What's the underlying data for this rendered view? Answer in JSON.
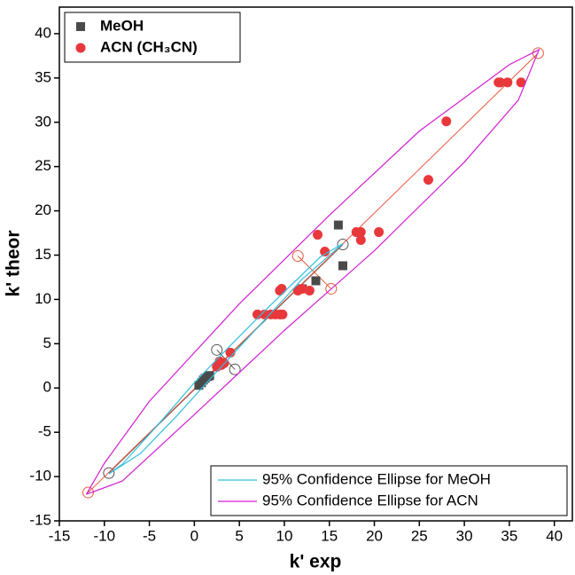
{
  "chart_data": {
    "type": "scatter",
    "x_label": "k' exp",
    "y_label": "k' theor",
    "xlim": [
      -15,
      42
    ],
    "ylim": [
      -15,
      43
    ],
    "xticks": [
      -15,
      -10,
      -5,
      0,
      5,
      10,
      15,
      20,
      25,
      30,
      35,
      40
    ],
    "yticks": [
      -15,
      -10,
      -5,
      0,
      5,
      10,
      15,
      20,
      25,
      30,
      35,
      40
    ],
    "series": [
      {
        "name": "MeOH",
        "kind": "scatter",
        "marker": "square",
        "color": "#4a4a4a",
        "legend": "upper left",
        "x": [
          0.5,
          0.8,
          1.0,
          1.2,
          1.5,
          1.7,
          12.0,
          13.5,
          16.0,
          16.5
        ],
        "y": [
          0.3,
          0.6,
          0.9,
          1.1,
          1.3,
          1.4,
          11.2,
          12.1,
          18.4,
          13.8
        ]
      },
      {
        "name": "ACN (CH₃CN)",
        "kind": "scatter",
        "marker": "circle",
        "color": "#e8383b",
        "legend": "upper left",
        "x": [
          2.5,
          3.0,
          3.3,
          2.8,
          4.0,
          7.0,
          7.8,
          8.5,
          9.0,
          9.5,
          9.8,
          9.5,
          9.7,
          11.5,
          12.0,
          12.8,
          13.7,
          14.5,
          18.0,
          18.5,
          18.5,
          20.5,
          26.0,
          28.0,
          33.8,
          34.0,
          34.8,
          36.3
        ],
        "y": [
          2.4,
          2.6,
          2.8,
          3.0,
          4.0,
          8.3,
          8.3,
          8.3,
          8.3,
          8.3,
          8.3,
          11.0,
          11.2,
          11.0,
          11.2,
          11.0,
          17.3,
          15.4,
          17.6,
          17.6,
          16.7,
          17.6,
          23.5,
          30.1,
          34.5,
          34.5,
          34.5,
          34.5
        ]
      },
      {
        "name": "95% Confidence Ellipse for MeOH",
        "kind": "line",
        "color": "#33bfdf",
        "legend": "lower right",
        "x": [
          -9.5,
          -6,
          -2,
          2,
          6,
          12,
          16.5,
          14,
          8,
          4,
          0,
          -4,
          -8,
          -9.5
        ],
        "y": [
          -9.7,
          -7.4,
          -3.2,
          1.3,
          5.7,
          12.3,
          16.3,
          14.8,
          8.9,
          4.8,
          0.6,
          -4.1,
          -8.6,
          -9.7
        ]
      },
      {
        "name": "95% Confidence Ellipse for ACN",
        "kind": "line",
        "color": "#d21fd2",
        "legend": "lower right",
        "x": [
          -12,
          -8,
          0,
          10,
          20,
          30,
          36,
          38.3,
          35,
          25,
          15,
          5,
          -5,
          -10,
          -12
        ],
        "y": [
          -12,
          -10.5,
          -3,
          6.5,
          15.5,
          25.5,
          32.5,
          38.2,
          36.5,
          29,
          19.5,
          9.5,
          -1.5,
          -8.5,
          -12
        ]
      }
    ],
    "ellipse_axes": [
      {
        "color": "#555555",
        "x": [
          -9.5,
          16.5
        ],
        "y": [
          -9.6,
          16.2
        ]
      },
      {
        "color": "#555555",
        "x": [
          2.5,
          4.5
        ],
        "y": [
          4.3,
          2.1
        ]
      },
      {
        "color": "#e8583b",
        "x": [
          -11.8,
          38.2
        ],
        "y": [
          -11.8,
          37.8
        ]
      },
      {
        "color": "#e8583b",
        "x": [
          11.5,
          15.2
        ],
        "y": [
          14.9,
          11.2
        ]
      }
    ]
  }
}
